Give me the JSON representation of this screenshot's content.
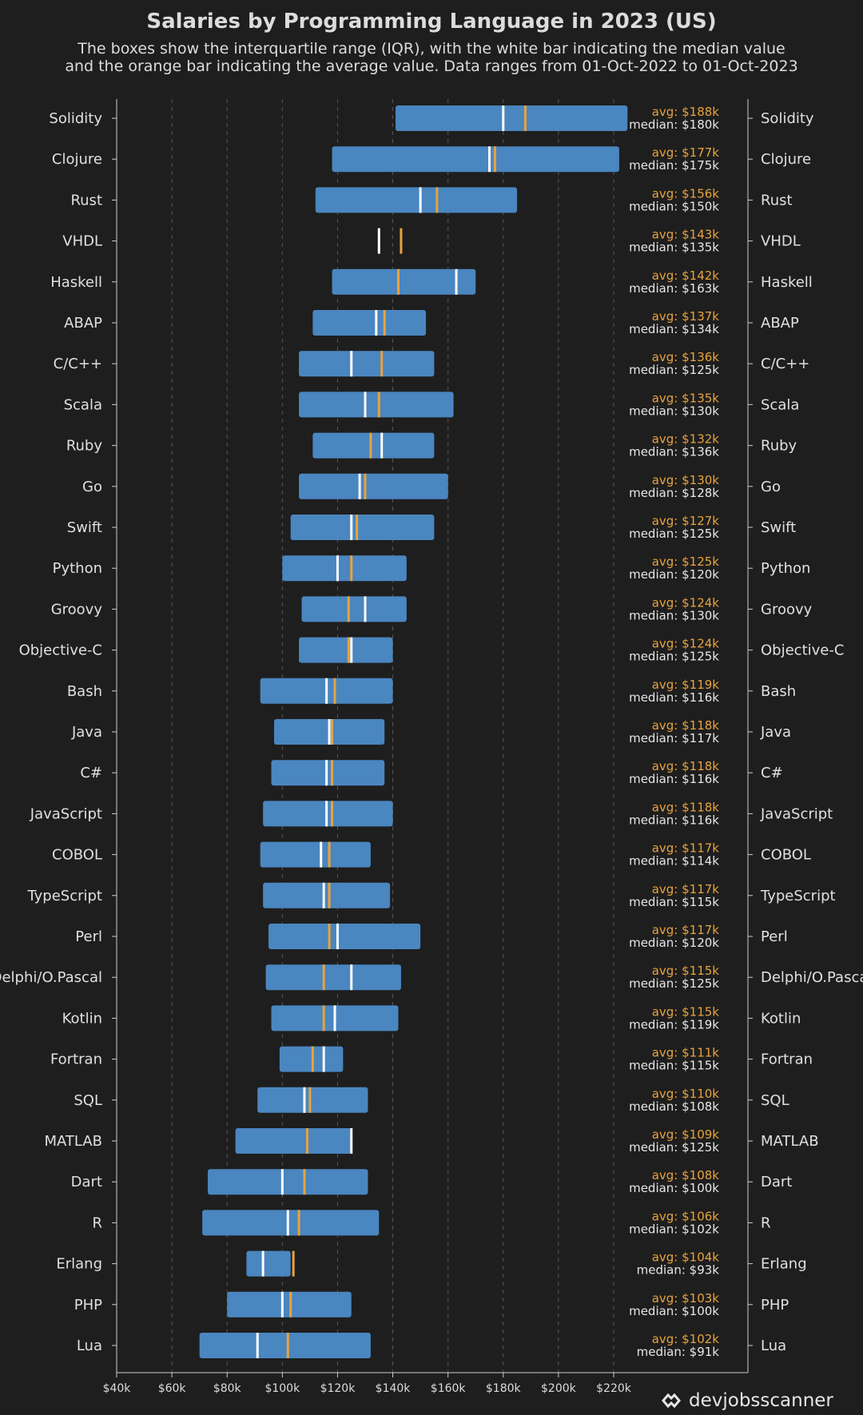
{
  "title": "Salaries by Programming Language in 2023 (US)",
  "subtitle_line1": "The boxes show the interquartile range (IQR), with the white bar indicating the median value",
  "subtitle_line2": "and the orange bar indicating the average value. Data ranges from 01-Oct-2022 to 01-Oct-2023",
  "brand": "devjobsscanner",
  "colors": {
    "background": "#1e1e1e",
    "box": "#4a86c0",
    "median": "#ffffff",
    "avg": "#e8a33d",
    "grid": "#555555"
  },
  "chart_data": {
    "type": "boxplot-range",
    "title": "Salaries by Programming Language in 2023 (US)",
    "xlim": [
      40,
      220
    ],
    "x_ticks": [
      40,
      60,
      80,
      100,
      120,
      140,
      160,
      180,
      200,
      220
    ],
    "x_tick_labels": [
      "$40k",
      "$60k",
      "$80k",
      "$100k",
      "$120k",
      "$140k",
      "$160k",
      "$180k",
      "$200k",
      "$220k"
    ],
    "units": "thousand USD",
    "series": [
      {
        "lang": "Solidity",
        "q1": 141,
        "q3": 225,
        "avg": 188,
        "median": 180,
        "avg_label": "avg: $188k",
        "median_label": "median: $180k"
      },
      {
        "lang": "Clojure",
        "q1": 118,
        "q3": 222,
        "avg": 177,
        "median": 175,
        "avg_label": "avg: $177k",
        "median_label": "median: $175k"
      },
      {
        "lang": "Rust",
        "q1": 112,
        "q3": 185,
        "avg": 156,
        "median": 150,
        "avg_label": "avg: $156k",
        "median_label": "median: $150k"
      },
      {
        "lang": "VHDL",
        "q1": null,
        "q3": null,
        "avg": 143,
        "median": 135,
        "avg_label": "avg: $143k",
        "median_label": "median: $135k"
      },
      {
        "lang": "Haskell",
        "q1": 118,
        "q3": 170,
        "avg": 142,
        "median": 163,
        "avg_label": "avg: $142k",
        "median_label": "median: $163k"
      },
      {
        "lang": "ABAP",
        "q1": 111,
        "q3": 152,
        "avg": 137,
        "median": 134,
        "avg_label": "avg: $137k",
        "median_label": "median: $134k"
      },
      {
        "lang": "C/C++",
        "q1": 106,
        "q3": 155,
        "avg": 136,
        "median": 125,
        "avg_label": "avg: $136k",
        "median_label": "median: $125k"
      },
      {
        "lang": "Scala",
        "q1": 106,
        "q3": 162,
        "avg": 135,
        "median": 130,
        "avg_label": "avg: $135k",
        "median_label": "median: $130k"
      },
      {
        "lang": "Ruby",
        "q1": 111,
        "q3": 155,
        "avg": 132,
        "median": 136,
        "avg_label": "avg: $132k",
        "median_label": "median: $136k"
      },
      {
        "lang": "Go",
        "q1": 106,
        "q3": 160,
        "avg": 130,
        "median": 128,
        "avg_label": "avg: $130k",
        "median_label": "median: $128k"
      },
      {
        "lang": "Swift",
        "q1": 103,
        "q3": 155,
        "avg": 127,
        "median": 125,
        "avg_label": "avg: $127k",
        "median_label": "median: $125k"
      },
      {
        "lang": "Python",
        "q1": 100,
        "q3": 145,
        "avg": 125,
        "median": 120,
        "avg_label": "avg: $125k",
        "median_label": "median: $120k"
      },
      {
        "lang": "Groovy",
        "q1": 107,
        "q3": 145,
        "avg": 124,
        "median": 130,
        "avg_label": "avg: $124k",
        "median_label": "median: $130k"
      },
      {
        "lang": "Objective-C",
        "q1": 106,
        "q3": 140,
        "avg": 124,
        "median": 125,
        "avg_label": "avg: $124k",
        "median_label": "median: $125k"
      },
      {
        "lang": "Bash",
        "q1": 92,
        "q3": 140,
        "avg": 119,
        "median": 116,
        "avg_label": "avg: $119k",
        "median_label": "median: $116k"
      },
      {
        "lang": "Java",
        "q1": 97,
        "q3": 137,
        "avg": 118,
        "median": 117,
        "avg_label": "avg: $118k",
        "median_label": "median: $117k"
      },
      {
        "lang": "C#",
        "q1": 96,
        "q3": 137,
        "avg": 118,
        "median": 116,
        "avg_label": "avg: $118k",
        "median_label": "median: $116k"
      },
      {
        "lang": "JavaScript",
        "q1": 93,
        "q3": 140,
        "avg": 118,
        "median": 116,
        "avg_label": "avg: $118k",
        "median_label": "median: $116k"
      },
      {
        "lang": "COBOL",
        "q1": 92,
        "q3": 132,
        "avg": 117,
        "median": 114,
        "avg_label": "avg: $117k",
        "median_label": "median: $114k"
      },
      {
        "lang": "TypeScript",
        "q1": 93,
        "q3": 139,
        "avg": 117,
        "median": 115,
        "avg_label": "avg: $117k",
        "median_label": "median: $115k"
      },
      {
        "lang": "Perl",
        "q1": 95,
        "q3": 150,
        "avg": 117,
        "median": 120,
        "avg_label": "avg: $117k",
        "median_label": "median: $120k"
      },
      {
        "lang": "Delphi/O.Pascal",
        "q1": 94,
        "q3": 143,
        "avg": 115,
        "median": 125,
        "avg_label": "avg: $115k",
        "median_label": "median: $125k"
      },
      {
        "lang": "Kotlin",
        "q1": 96,
        "q3": 142,
        "avg": 115,
        "median": 119,
        "avg_label": "avg: $115k",
        "median_label": "median: $119k"
      },
      {
        "lang": "Fortran",
        "q1": 99,
        "q3": 122,
        "avg": 111,
        "median": 115,
        "avg_label": "avg: $111k",
        "median_label": "median: $115k"
      },
      {
        "lang": "SQL",
        "q1": 91,
        "q3": 131,
        "avg": 110,
        "median": 108,
        "avg_label": "avg: $110k",
        "median_label": "median: $108k"
      },
      {
        "lang": "MATLAB",
        "q1": 83,
        "q3": 125,
        "avg": 109,
        "median": 125,
        "avg_label": "avg: $109k",
        "median_label": "median: $125k"
      },
      {
        "lang": "Dart",
        "q1": 73,
        "q3": 131,
        "avg": 108,
        "median": 100,
        "avg_label": "avg: $108k",
        "median_label": "median: $100k"
      },
      {
        "lang": "R",
        "q1": 71,
        "q3": 135,
        "avg": 106,
        "median": 102,
        "avg_label": "avg: $106k",
        "median_label": "median: $102k"
      },
      {
        "lang": "Erlang",
        "q1": 87,
        "q3": 103,
        "avg": 104,
        "median": 93,
        "avg_label": "avg: $104k",
        "median_label": "median: $93k"
      },
      {
        "lang": "PHP",
        "q1": 80,
        "q3": 125,
        "avg": 103,
        "median": 100,
        "avg_label": "avg: $103k",
        "median_label": "median: $100k"
      },
      {
        "lang": "Lua",
        "q1": 70,
        "q3": 132,
        "avg": 102,
        "median": 91,
        "avg_label": "avg: $102k",
        "median_label": "median: $91k"
      }
    ]
  }
}
